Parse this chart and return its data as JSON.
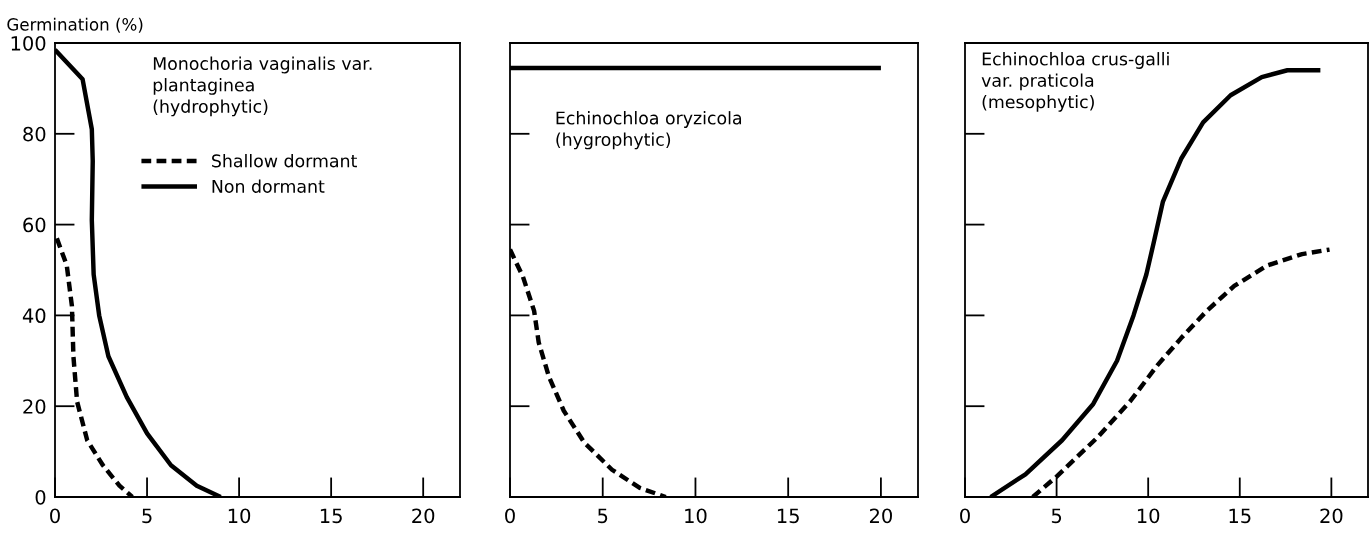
{
  "chart_data": [
    {
      "type": "line",
      "ylabel": "Germination (%)",
      "annotations": [
        "Monochoria vaginalis var.\nplantaginea\n(hydrophytic)"
      ],
      "xlim": [
        0,
        22
      ],
      "xticks": [
        0,
        5,
        10,
        15,
        20
      ],
      "ylim": [
        0,
        100
      ],
      "yticks": [
        0,
        20,
        40,
        60,
        80,
        100
      ],
      "legend": "top",
      "grid": false,
      "series": [
        {
          "name": "Shallow dormant",
          "color": "#000000",
          "line_style": "dashed",
          "x": [
            0.1,
            0.64,
            0.92,
            1.0,
            1.2,
            1.75,
            2.6,
            3.5,
            4.2
          ],
          "values": [
            57,
            51,
            42,
            31,
            21,
            12.5,
            7,
            2.5,
            0
          ]
        },
        {
          "name": "Non dormant",
          "color": "#000000",
          "line_style": "solid",
          "x": [
            0,
            1.5,
            2.0,
            2.05,
            2.0,
            2.1,
            2.4,
            2.9,
            3.9,
            5,
            6.3,
            7.7,
            9
          ],
          "values": [
            98.5,
            92,
            81,
            74,
            61,
            49,
            40,
            31,
            22,
            14,
            7,
            2.5,
            0
          ]
        }
      ]
    },
    {
      "type": "line",
      "annotations": [
        "Echinochloa oryzicola\n(hygrophytic)"
      ],
      "xlim": [
        0,
        22
      ],
      "xticks": [
        0,
        5,
        10,
        15,
        20
      ],
      "ylim": [
        0,
        100
      ],
      "yticks": [
        {
          "value": 0,
          "label": null
        },
        {
          "value": 20,
          "label": null
        },
        {
          "value": 40,
          "label": null
        },
        {
          "value": 60,
          "label": null
        },
        {
          "value": 80,
          "label": null
        },
        {
          "value": 100,
          "label": null
        }
      ],
      "tick_labels": "x",
      "grid": false,
      "series": [
        {
          "color": "#000000",
          "line_style": "dashed",
          "x": [
            0,
            0.7,
            1.3,
            1.55,
            2.1,
            2.9,
            4,
            5.5,
            7,
            8.4
          ],
          "values": [
            54.5,
            48.5,
            41,
            34,
            26.5,
            19,
            12,
            6,
            2,
            0
          ]
        },
        {
          "color": "#000000",
          "line_style": "solid",
          "x": [
            0,
            20
          ],
          "values": [
            94.5,
            94.5
          ]
        }
      ]
    },
    {
      "type": "line",
      "annotations": [
        "Echinochloa crus-galli\nvar. praticola\n(mesophytic)"
      ],
      "xlim": [
        0,
        22
      ],
      "xticks": [
        0,
        5,
        10,
        15,
        20
      ],
      "ylim": [
        0,
        100
      ],
      "yticks": [
        {
          "value": 0,
          "label": null
        },
        {
          "value": 20,
          "label": null
        },
        {
          "value": 40,
          "label": null
        },
        {
          "value": 60,
          "label": null
        },
        {
          "value": 80,
          "label": null
        },
        {
          "value": 100,
          "label": null
        }
      ],
      "tick_labels": "x",
      "grid": false,
      "series": [
        {
          "color": "#000000",
          "line_style": "dashed",
          "x": [
            3.7,
            5,
            7.2,
            9,
            10.5,
            11.8,
            13.2,
            14.7,
            16.5,
            18.4,
            19.9
          ],
          "values": [
            0,
            4.5,
            13,
            21,
            29,
            35,
            41,
            46.5,
            51,
            53.5,
            54.5
          ]
        },
        {
          "color": "#000000",
          "line_style": "solid",
          "x": [
            1.4,
            3.3,
            5.3,
            7,
            8.3,
            9.2,
            9.9,
            10.3,
            10.8,
            11.8,
            13,
            14.5,
            16.2,
            17.6,
            19.4
          ],
          "values": [
            0,
            5,
            12.5,
            20.5,
            30,
            40,
            49,
            56,
            65,
            74.5,
            82.5,
            88.5,
            92.5,
            94,
            94
          ]
        }
      ]
    }
  ]
}
